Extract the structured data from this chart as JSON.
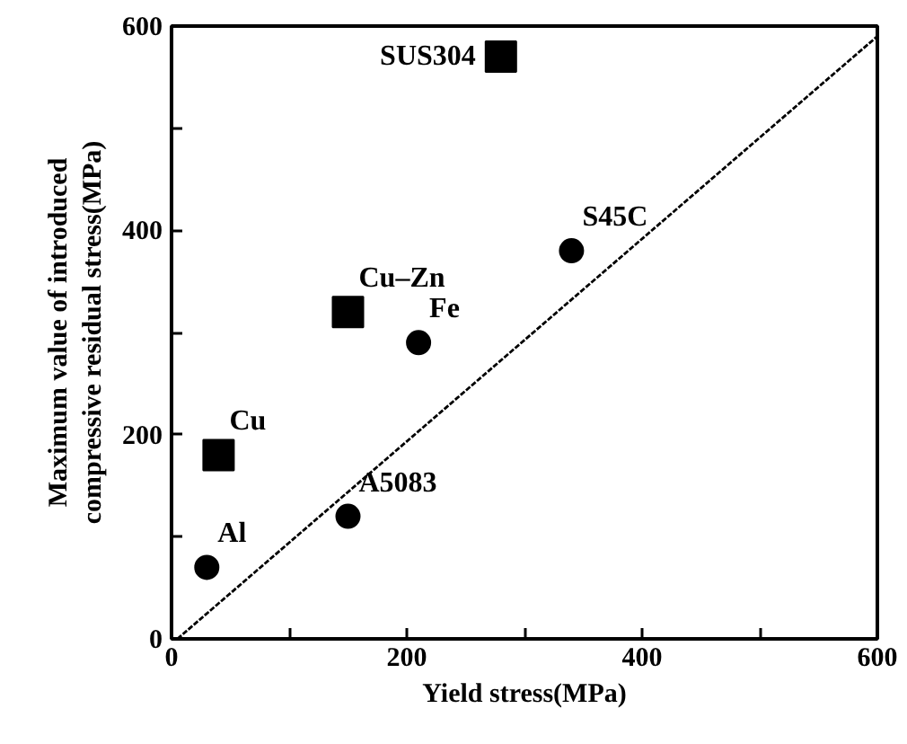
{
  "chart_data": {
    "type": "scatter",
    "xlabel": "Yield stress(MPa)",
    "ylabel": "Maximum value of introduced\ncompressive residual stress(MPa)",
    "xlim": [
      0,
      600
    ],
    "ylim": [
      0,
      600
    ],
    "xticks": [
      0,
      {
        "value": 100,
        "label": null
      },
      200,
      {
        "value": 300,
        "label": null
      },
      400,
      {
        "value": 500,
        "label": null
      },
      600
    ],
    "yticks": [
      0,
      {
        "value": 100,
        "label": null
      },
      200,
      {
        "value": 300,
        "label": null
      },
      400,
      {
        "value": 500,
        "label": null
      },
      600
    ],
    "grid": false,
    "series": [
      {
        "marker": "circle",
        "color": "#000000",
        "x": [
          30,
          150,
          210,
          340
        ],
        "values": [
          70,
          120,
          290,
          380
        ]
      },
      {
        "marker": "square",
        "color": "#000000",
        "x": [
          40,
          150,
          280
        ],
        "values": [
          180,
          320,
          570
        ]
      },
      {
        "type": "line",
        "line_style": "dashed",
        "color": "#000000",
        "x": [
          5,
          600
        ],
        "values": [
          0,
          590
        ]
      }
    ],
    "annotations": [
      {
        "text": "Al",
        "x": 30,
        "y": 70
      },
      {
        "text": "A5083",
        "x": 150,
        "y": 120
      },
      {
        "text": "Fe",
        "x": 210,
        "y": 290
      },
      {
        "text": "S45C",
        "x": 340,
        "y": 380
      },
      {
        "text": "Cu",
        "x": 40,
        "y": 180
      },
      {
        "text": "Cu–Zn",
        "x": 150,
        "y": 320
      },
      {
        "text": "SUS304",
        "x": 280,
        "y": 570
      }
    ]
  }
}
